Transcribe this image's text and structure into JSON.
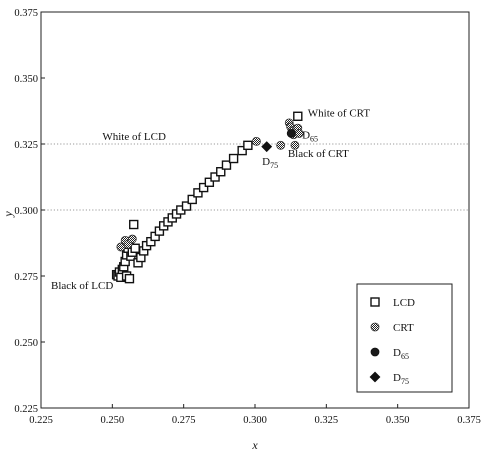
{
  "chart_data": {
    "type": "scatter",
    "xlabel": "x",
    "ylabel": "y",
    "xlim": [
      0.225,
      0.375
    ],
    "ylim": [
      0.225,
      0.375
    ],
    "x_ticks": [
      "0.225",
      "0.250",
      "0.275",
      "0.300",
      "0.325",
      "0.350",
      "0.375"
    ],
    "y_ticks": [
      "0.225",
      "0.250",
      "0.275",
      "0.300",
      "0.325",
      "0.350",
      "0.375"
    ],
    "gridlines_y": [
      0.3,
      0.325
    ],
    "grid": "dotted horizontal at y=0.300 and y=0.325",
    "legend_position": "bottom-right",
    "series": [
      {
        "name": "LCD",
        "marker": "open-square",
        "points": [
          [
            0.2515,
            0.2755
          ],
          [
            0.252,
            0.275
          ],
          [
            0.2525,
            0.2765
          ],
          [
            0.253,
            0.2745
          ],
          [
            0.2535,
            0.2775
          ],
          [
            0.254,
            0.2785
          ],
          [
            0.2545,
            0.2805
          ],
          [
            0.255,
            0.275
          ],
          [
            0.255,
            0.283
          ],
          [
            0.2555,
            0.2855
          ],
          [
            0.256,
            0.287
          ],
          [
            0.256,
            0.274
          ],
          [
            0.2565,
            0.2825
          ],
          [
            0.257,
            0.284
          ],
          [
            0.2575,
            0.2945
          ],
          [
            0.258,
            0.2855
          ],
          [
            0.259,
            0.28
          ],
          [
            0.26,
            0.282
          ],
          [
            0.261,
            0.2845
          ],
          [
            0.262,
            0.2865
          ],
          [
            0.2635,
            0.288
          ],
          [
            0.265,
            0.29
          ],
          [
            0.2665,
            0.292
          ],
          [
            0.268,
            0.294
          ],
          [
            0.2695,
            0.2955
          ],
          [
            0.271,
            0.297
          ],
          [
            0.2725,
            0.2985
          ],
          [
            0.274,
            0.3
          ],
          [
            0.276,
            0.3015
          ],
          [
            0.278,
            0.304
          ],
          [
            0.28,
            0.3065
          ],
          [
            0.282,
            0.3085
          ],
          [
            0.284,
            0.3105
          ],
          [
            0.286,
            0.3125
          ],
          [
            0.288,
            0.3145
          ],
          [
            0.29,
            0.317
          ],
          [
            0.2925,
            0.3195
          ],
          [
            0.2955,
            0.3225
          ],
          [
            0.2975,
            0.3245
          ],
          [
            0.315,
            0.3355
          ]
        ]
      },
      {
        "name": "CRT",
        "marker": "shaded-circle",
        "points": [
          [
            0.253,
            0.286
          ],
          [
            0.2545,
            0.2885
          ],
          [
            0.2555,
            0.287
          ],
          [
            0.257,
            0.289
          ],
          [
            0.3005,
            0.326
          ],
          [
            0.309,
            0.3245
          ],
          [
            0.312,
            0.333
          ],
          [
            0.3125,
            0.3315
          ],
          [
            0.313,
            0.33
          ],
          [
            0.3135,
            0.3285
          ],
          [
            0.314,
            0.3245
          ],
          [
            0.3145,
            0.3305
          ],
          [
            0.315,
            0.331
          ],
          [
            0.3155,
            0.329
          ]
        ]
      },
      {
        "name": "D65",
        "marker": "filled-circle",
        "points": [
          [
            0.3127,
            0.329
          ]
        ]
      },
      {
        "name": "D75",
        "marker": "filled-diamond",
        "points": [
          [
            0.3041,
            0.324
          ]
        ]
      }
    ],
    "annotations": [
      {
        "id": "white-lcd",
        "text": "White of LCD",
        "x": 0.2465,
        "y": 0.3265
      },
      {
        "id": "white-crt",
        "text": "White of CRT",
        "x": 0.3185,
        "y": 0.3355
      },
      {
        "id": "black-crt",
        "text": "Black of CRT",
        "x": 0.3115,
        "y": 0.32
      },
      {
        "id": "black-lcd",
        "text": "Black of LCD",
        "x": 0.2285,
        "y": 0.27
      },
      {
        "id": "d65",
        "text": "D",
        "sub": "65",
        "x": 0.3165,
        "y": 0.327
      },
      {
        "id": "d75",
        "text": "D",
        "sub": "75",
        "x": 0.3025,
        "y": 0.317
      }
    ],
    "legend": [
      {
        "marker": "open-square",
        "label": "LCD",
        "sub": ""
      },
      {
        "marker": "shaded-circle",
        "label": "CRT",
        "sub": ""
      },
      {
        "marker": "filled-circle",
        "label": "D",
        "sub": "65"
      },
      {
        "marker": "filled-diamond",
        "label": "D",
        "sub": "75"
      }
    ]
  }
}
